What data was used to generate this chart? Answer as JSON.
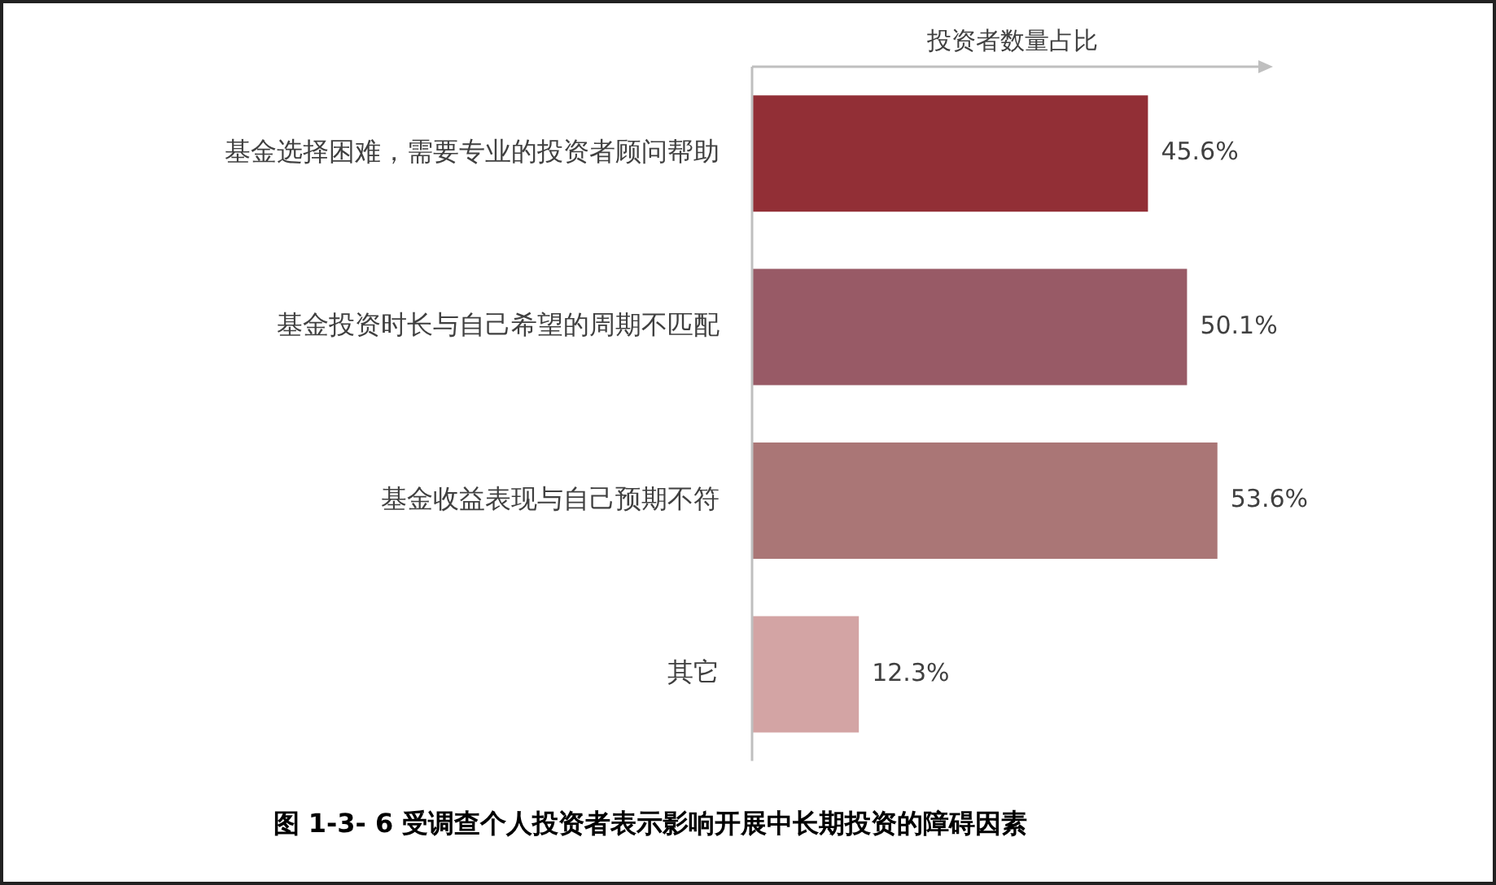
{
  "chart_data": {
    "type": "bar",
    "orientation": "horizontal",
    "title": "图 1-3- 6 受调查个人投资者表示影响开展中长期投资的障碍因素",
    "xlabel": "投资者数量占比",
    "categories": [
      "基金选择困难，需要专业的投资者顾问帮助",
      "基金投资时长与自己希望的周期不匹配",
      "基金收益表现与自己预期不符",
      "其它"
    ],
    "values": [
      45.6,
      50.1,
      53.6,
      12.3
    ],
    "colors": [
      "#922f36",
      "#985a66",
      "#aa7676",
      "#d3a4a4"
    ],
    "value_labels": [
      "45.6%",
      "50.1%",
      "53.6%",
      "12.3%"
    ],
    "grid": false,
    "legend": false
  }
}
